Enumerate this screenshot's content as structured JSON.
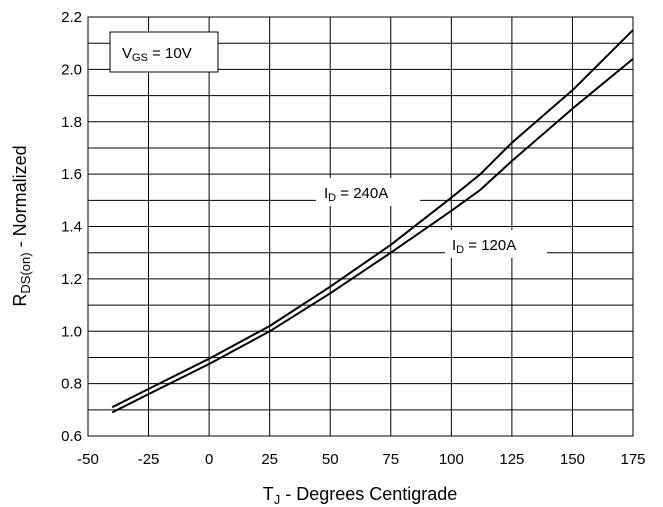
{
  "chart_data": {
    "type": "line",
    "xlabel": {
      "main": "T",
      "sub": "J",
      "rest": " - Degrees Centigrade"
    },
    "ylabel": {
      "main": "R",
      "sub": "DS(on)",
      "rest": " - Normalized"
    },
    "xlim": [
      -50,
      175
    ],
    "ylim": [
      0.6,
      2.2
    ],
    "xticks": [
      -50,
      -25,
      0,
      25,
      50,
      75,
      100,
      125,
      150,
      175
    ],
    "yticks": [
      0.6,
      0.8,
      1.0,
      1.2,
      1.4,
      1.6,
      1.8,
      2.0,
      2.2
    ],
    "xtick_labels": [
      "-50",
      "-25",
      "0",
      "25",
      "50",
      "75",
      "100",
      "125",
      "150",
      "175"
    ],
    "ytick_labels": [
      "0.6",
      "0.8",
      "1.0",
      "1.2",
      "1.4",
      "1.6",
      "1.8",
      "2.0",
      "2.2"
    ],
    "grid": true,
    "annotations": {
      "vgs": {
        "main": "V",
        "sub": "GS",
        "rest": " = 10V"
      },
      "id_240": {
        "main": "I",
        "sub": "D",
        "rest": " = 240A"
      },
      "id_120": {
        "main": "I",
        "sub": "D",
        "rest": " = 120A"
      }
    },
    "series": [
      {
        "label_ref": "id_240",
        "x": [
          -40,
          -25,
          0,
          25,
          50,
          75,
          100,
          112,
          125,
          150,
          175
        ],
        "y": [
          0.71,
          0.78,
          0.895,
          1.02,
          1.17,
          1.33,
          1.51,
          1.6,
          1.72,
          1.92,
          2.15
        ]
      },
      {
        "label_ref": "id_120",
        "x": [
          -40,
          -25,
          0,
          25,
          50,
          75,
          100,
          112,
          125,
          150,
          175
        ],
        "y": [
          0.69,
          0.76,
          0.875,
          1.0,
          1.145,
          1.3,
          1.46,
          1.54,
          1.65,
          1.85,
          2.04
        ]
      }
    ]
  }
}
